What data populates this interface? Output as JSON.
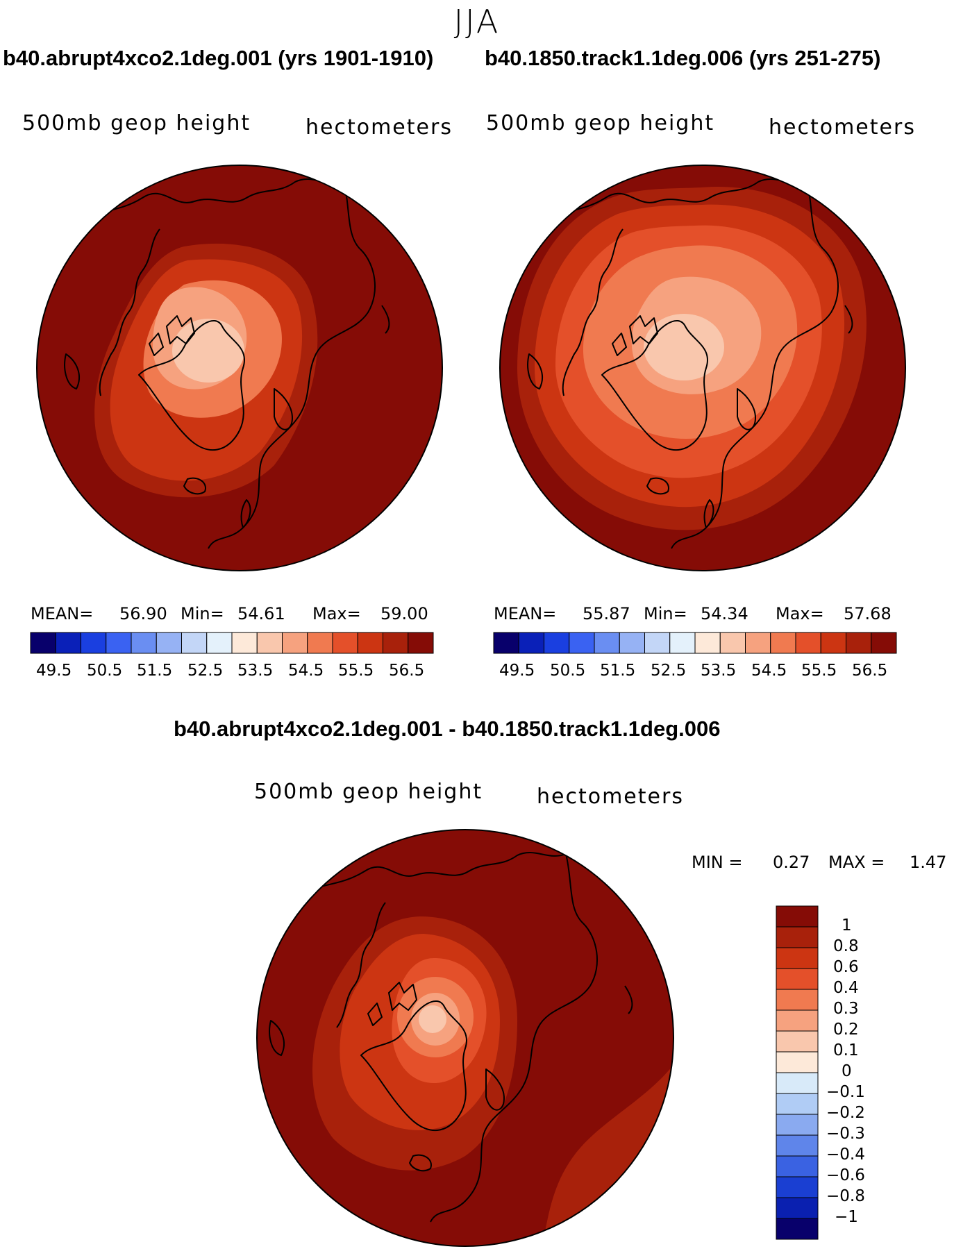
{
  "season": "JJA",
  "panels": [
    {
      "case": "b40.abrupt4xco2.1deg.001 (yrs 1901-1910)",
      "variable": "500mb geop height",
      "units": "hectometers",
      "stats": {
        "mean_label": "MEAN=",
        "mean": "56.90",
        "min_label": "Min=",
        "min": "54.61",
        "max_label": "Max=",
        "max": "59.00"
      }
    },
    {
      "case": "b40.1850.track1.1deg.006 (yrs 251-275)",
      "variable": "500mb geop height",
      "units": "hectometers",
      "stats": {
        "mean_label": "MEAN=",
        "mean": "55.87",
        "min_label": "Min=",
        "min": "54.34",
        "max_label": "Max=",
        "max": "57.68"
      }
    }
  ],
  "colorbar_mean": {
    "colors": [
      "#08006b",
      "#0a20b8",
      "#1a3fe0",
      "#3a62f2",
      "#6a8ef2",
      "#96b2f4",
      "#c3d6f7",
      "#e4f1fb",
      "#fde9d9",
      "#f9c7ad",
      "#f6a27f",
      "#f07a50",
      "#e4502a",
      "#cc3512",
      "#a8210b",
      "#850c06"
    ],
    "labels": [
      "49.5",
      "50.5",
      "51.5",
      "52.5",
      "53.5",
      "54.5",
      "55.5",
      "56.5"
    ]
  },
  "difference": {
    "title": "b40.abrupt4xco2.1deg.001 - b40.1850.track1.1deg.006",
    "variable": "500mb geop height",
    "units": "hectometers",
    "stats": {
      "min_label": "MIN =",
      "min": "0.27",
      "max_label": "MAX =",
      "max": "1.47"
    }
  },
  "colorbar_diff": {
    "colors": [
      "#850c06",
      "#a8210b",
      "#cc3512",
      "#e4502a",
      "#f07a50",
      "#f6a27f",
      "#f9c7ad",
      "#fde9d9",
      "#d8eaf9",
      "#b0ccf5",
      "#8aaaf0",
      "#5f85ea",
      "#3a62e2",
      "#1a3fd2",
      "#0a20b0",
      "#08006b"
    ],
    "labels": [
      "1",
      "0.8",
      "0.6",
      "0.4",
      "0.3",
      "0.2",
      "0.1",
      "0",
      "−0.1",
      "−0.2",
      "−0.3",
      "−0.4",
      "−0.6",
      "−0.8",
      "−1"
    ]
  },
  "palette": {
    "darkest": "#850c06",
    "ring2": "#a8210b",
    "ring3": "#cc3512",
    "ring4": "#e4502a",
    "ring5": "#f07a50",
    "ring6": "#f6a27f",
    "ring7": "#f9c7ad"
  }
}
